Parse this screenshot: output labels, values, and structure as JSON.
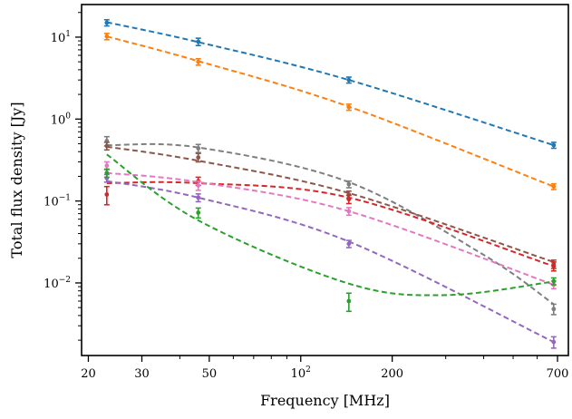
{
  "chart_data": {
    "type": "scatter",
    "title": "",
    "xlabel": "Frequency [MHz]",
    "ylabel": "Total flux density [Jy]",
    "xscale": "log",
    "yscale": "log",
    "xlim": [
      19,
      760
    ],
    "ylim": [
      0.0013,
      25
    ],
    "legend": "none",
    "grid": false,
    "xticks": [
      {
        "value": 20,
        "label": "20"
      },
      {
        "value": 30,
        "label": "30"
      },
      {
        "value": 50,
        "label": "50"
      },
      {
        "value": 100,
        "label": "10",
        "sup": "2"
      },
      {
        "value": 200,
        "label": "200"
      },
      {
        "value": 700,
        "label": "700"
      }
    ],
    "yticks": [
      {
        "value": 0.01,
        "label": "10",
        "sup": "−2"
      },
      {
        "value": 0.1,
        "label": "10",
        "sup": "−1"
      },
      {
        "value": 1,
        "label": "10",
        "sup": "0"
      },
      {
        "value": 10,
        "label": "10",
        "sup": "1"
      }
    ],
    "series": [
      {
        "color": "#1f77b4",
        "points": [
          {
            "x": 23,
            "y": 15.0,
            "err": 1.3
          },
          {
            "x": 46,
            "y": 8.8,
            "err": 0.9
          },
          {
            "x": 144,
            "y": 3.0,
            "err": 0.25
          },
          {
            "x": 680,
            "y": 0.48,
            "err": 0.04
          }
        ],
        "fit": [
          {
            "x": 23,
            "y": 15.2
          },
          {
            "x": 46,
            "y": 8.7
          },
          {
            "x": 144,
            "y": 3.0
          },
          {
            "x": 680,
            "y": 0.48
          }
        ]
      },
      {
        "color": "#ff7f0e",
        "points": [
          {
            "x": 23,
            "y": 10.2,
            "err": 0.9
          },
          {
            "x": 46,
            "y": 5.0,
            "err": 0.45
          },
          {
            "x": 144,
            "y": 1.4,
            "err": 0.12
          },
          {
            "x": 680,
            "y": 0.15,
            "err": 0.012
          }
        ],
        "fit": [
          {
            "x": 23,
            "y": 10.2
          },
          {
            "x": 46,
            "y": 5.1
          },
          {
            "x": 144,
            "y": 1.42
          },
          {
            "x": 680,
            "y": 0.15
          }
        ]
      },
      {
        "color": "#7f7f7f",
        "points": [
          {
            "x": 23,
            "y": 0.54,
            "err": 0.07
          },
          {
            "x": 46,
            "y": 0.44,
            "err": 0.05
          },
          {
            "x": 144,
            "y": 0.16,
            "err": 0.015
          },
          {
            "x": 680,
            "y": 0.0048,
            "err": 0.0007
          }
        ],
        "fit": [
          {
            "x": 23,
            "y": 0.48
          },
          {
            "x": 46,
            "y": 0.45
          },
          {
            "x": 144,
            "y": 0.17
          },
          {
            "x": 400,
            "y": 0.022
          },
          {
            "x": 680,
            "y": 0.0055
          }
        ]
      },
      {
        "color": "#8c564b",
        "points": [
          {
            "x": 23,
            "y": 0.47,
            "err": 0.05
          },
          {
            "x": 46,
            "y": 0.34,
            "err": 0.04
          },
          {
            "x": 144,
            "y": 0.12,
            "err": 0.012
          },
          {
            "x": 680,
            "y": 0.017,
            "err": 0.002
          }
        ],
        "fit": [
          {
            "x": 23,
            "y": 0.46
          },
          {
            "x": 46,
            "y": 0.31
          },
          {
            "x": 144,
            "y": 0.125
          },
          {
            "x": 680,
            "y": 0.018
          }
        ]
      },
      {
        "color": "#d62728",
        "points": [
          {
            "x": 23,
            "y": 0.12,
            "err": 0.03
          },
          {
            "x": 46,
            "y": 0.175,
            "err": 0.02
          },
          {
            "x": 144,
            "y": 0.105,
            "err": 0.012
          },
          {
            "x": 680,
            "y": 0.016,
            "err": 0.002
          }
        ],
        "fit": [
          {
            "x": 23,
            "y": 0.165
          },
          {
            "x": 46,
            "y": 0.165
          },
          {
            "x": 144,
            "y": 0.11
          },
          {
            "x": 680,
            "y": 0.016
          }
        ]
      },
      {
        "color": "#e377c2",
        "points": [
          {
            "x": 23,
            "y": 0.27,
            "err": 0.03
          },
          {
            "x": 46,
            "y": 0.155,
            "err": 0.02
          },
          {
            "x": 144,
            "y": 0.075,
            "err": 0.008
          },
          {
            "x": 680,
            "y": 0.0095,
            "err": 0.001
          }
        ],
        "fit": [
          {
            "x": 23,
            "y": 0.22
          },
          {
            "x": 46,
            "y": 0.17
          },
          {
            "x": 144,
            "y": 0.075
          },
          {
            "x": 680,
            "y": 0.0095
          }
        ]
      },
      {
        "color": "#9467bd",
        "points": [
          {
            "x": 23,
            "y": 0.19,
            "err": 0.02
          },
          {
            "x": 46,
            "y": 0.11,
            "err": 0.012
          },
          {
            "x": 144,
            "y": 0.03,
            "err": 0.003
          },
          {
            "x": 680,
            "y": 0.0019,
            "err": 0.0003
          }
        ],
        "fit": [
          {
            "x": 23,
            "y": 0.175
          },
          {
            "x": 46,
            "y": 0.11
          },
          {
            "x": 144,
            "y": 0.032
          },
          {
            "x": 680,
            "y": 0.0019
          }
        ]
      },
      {
        "color": "#2ca02c",
        "points": [
          {
            "x": 23,
            "y": 0.22,
            "err": 0.025
          },
          {
            "x": 46,
            "y": 0.072,
            "err": 0.01
          },
          {
            "x": 144,
            "y": 0.006,
            "err": 0.0015
          },
          {
            "x": 680,
            "y": 0.0105,
            "err": 0.001
          }
        ],
        "fit": [
          {
            "x": 23,
            "y": 0.37
          },
          {
            "x": 46,
            "y": 0.058
          },
          {
            "x": 144,
            "y": 0.0098
          },
          {
            "x": 300,
            "y": 0.0071
          },
          {
            "x": 680,
            "y": 0.0104
          }
        ]
      }
    ]
  }
}
